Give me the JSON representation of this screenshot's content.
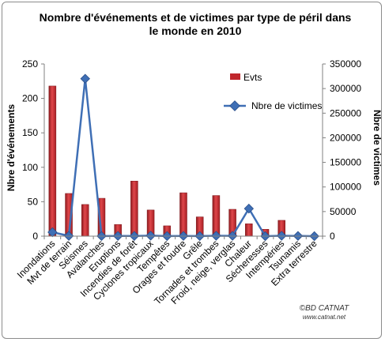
{
  "chart_data": {
    "type": "bar+line",
    "title": "Nombre d'événements et de victimes par type de péril dans le monde en 2010",
    "title_lines": [
      "Nombre d'événements et de victimes par type de péril dans",
      "le monde en 2010"
    ],
    "ylabel_left": "Nbre d'événements",
    "ylabel_right": "Nbre de victimes",
    "ylim_left": [
      0,
      250
    ],
    "ylim_right": [
      0,
      350000
    ],
    "yticks_left": [
      "0",
      "50",
      "100",
      "150",
      "200",
      "250"
    ],
    "yticks_right": [
      "0",
      "50000",
      "100000",
      "150000",
      "200000",
      "250000",
      "300000",
      "350000"
    ],
    "categories": [
      "Inondations",
      "Mvt de terrain",
      "Séismes",
      "Avalanches",
      "Eruptions",
      "Incendies de forêt",
      "Cyclones tropicaux",
      "Tempêtes",
      "Orages et foudre",
      "Grêle",
      "Tornades et trombes",
      "Froid, neige, verglas",
      "Chaleur",
      "Sécheresses",
      "Intempéries",
      "Tsunamis",
      "Extra terrestre"
    ],
    "series": [
      {
        "name": "Evts",
        "kind": "bar",
        "axis": "left",
        "color": "#c0272d",
        "values": [
          218,
          62,
          46,
          55,
          17,
          80,
          38,
          15,
          63,
          28,
          59,
          39,
          18,
          10,
          23,
          0,
          0
        ]
      },
      {
        "name": "Nbre de victimes",
        "kind": "line",
        "axis": "right",
        "color": "#3f6fb5",
        "values": [
          8000,
          600,
          320000,
          300,
          500,
          400,
          1000,
          200,
          500,
          200,
          800,
          700,
          56000,
          50,
          800,
          500,
          0
        ]
      }
    ],
    "grid": false,
    "legend_position": "upper-right-inside"
  },
  "footer": {
    "credit": "©BD CATNAT",
    "url": "www.catnat.net"
  },
  "colors": {
    "bar": "#c0272d",
    "line": "#3f6fb5",
    "frame": "#8c8c8c"
  }
}
